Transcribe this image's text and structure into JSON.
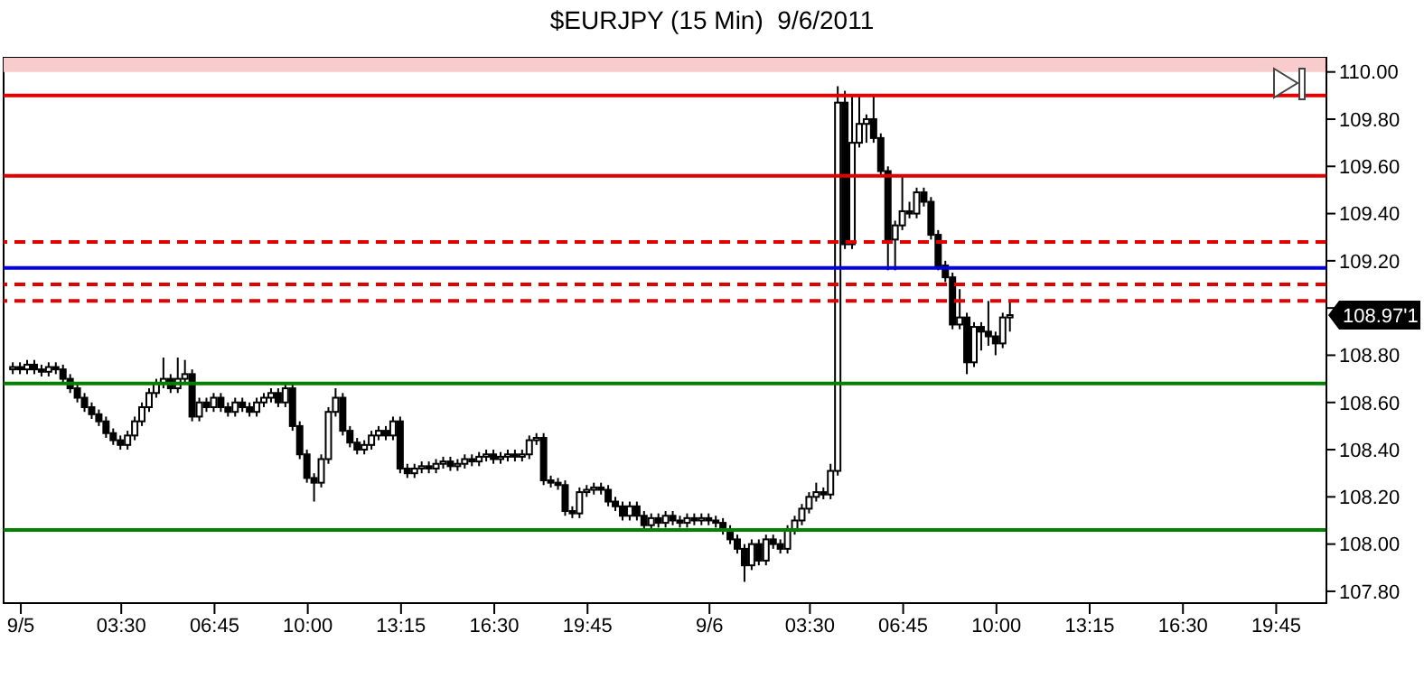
{
  "chart_data": {
    "type": "candlestick",
    "title": "$EURJPY (15 Min)  9/6/2011",
    "x": [
      "2011-09-04T23:45",
      "2011-09-05T00:00",
      "2011-09-05T00:15",
      "2011-09-05T00:30",
      "2011-09-05T00:45",
      "2011-09-05T01:00",
      "2011-09-05T01:15",
      "2011-09-05T01:30",
      "2011-09-05T01:45",
      "2011-09-05T02:00",
      "2011-09-05T02:15",
      "2011-09-05T02:30",
      "2011-09-05T02:45",
      "2011-09-05T03:00",
      "2011-09-05T03:15",
      "2011-09-05T03:30",
      "2011-09-05T03:45",
      "2011-09-05T04:00",
      "2011-09-05T04:15",
      "2011-09-05T04:30",
      "2011-09-05T04:45",
      "2011-09-05T05:00",
      "2011-09-05T05:15",
      "2011-09-05T05:30",
      "2011-09-05T05:45",
      "2011-09-05T06:00",
      "2011-09-05T06:15",
      "2011-09-05T06:30",
      "2011-09-05T06:45",
      "2011-09-05T07:00",
      "2011-09-05T07:15",
      "2011-09-05T07:30",
      "2011-09-05T07:45",
      "2011-09-05T08:00",
      "2011-09-05T08:15",
      "2011-09-05T08:30",
      "2011-09-05T08:45",
      "2011-09-05T09:00",
      "2011-09-05T09:15",
      "2011-09-05T09:30",
      "2011-09-05T09:45",
      "2011-09-05T10:00",
      "2011-09-05T10:15",
      "2011-09-05T10:30",
      "2011-09-05T10:45",
      "2011-09-05T11:00",
      "2011-09-05T11:15",
      "2011-09-05T11:30",
      "2011-09-05T11:45",
      "2011-09-05T12:00",
      "2011-09-05T12:15",
      "2011-09-05T12:30",
      "2011-09-05T12:45",
      "2011-09-05T13:00",
      "2011-09-05T13:15",
      "2011-09-05T13:30",
      "2011-09-05T13:45",
      "2011-09-05T14:00",
      "2011-09-05T14:15",
      "2011-09-05T14:30",
      "2011-09-05T14:45",
      "2011-09-05T15:00",
      "2011-09-05T15:15",
      "2011-09-05T15:30",
      "2011-09-05T15:45",
      "2011-09-05T16:00",
      "2011-09-05T16:15",
      "2011-09-05T16:30",
      "2011-09-05T16:45",
      "2011-09-05T17:00",
      "2011-09-05T17:15",
      "2011-09-05T17:30",
      "2011-09-05T17:45",
      "2011-09-05T18:00",
      "2011-09-05T18:15",
      "2011-09-05T18:30",
      "2011-09-05T18:45",
      "2011-09-05T19:00",
      "2011-09-05T19:15",
      "2011-09-05T19:30",
      "2011-09-05T19:45",
      "2011-09-05T20:00",
      "2011-09-05T20:15",
      "2011-09-05T20:30",
      "2011-09-05T20:45",
      "2011-09-05T21:00",
      "2011-09-05T21:15",
      "2011-09-05T21:30",
      "2011-09-05T21:45",
      "2011-09-05T22:00",
      "2011-09-05T22:15",
      "2011-09-05T22:30",
      "2011-09-05T22:45",
      "2011-09-05T23:00",
      "2011-09-05T23:15",
      "2011-09-05T23:30",
      "2011-09-05T23:45",
      "2011-09-06T00:00",
      "2011-09-06T00:15",
      "2011-09-06T00:30",
      "2011-09-06T00:45",
      "2011-09-06T01:00",
      "2011-09-06T01:15",
      "2011-09-06T01:30",
      "2011-09-06T01:45",
      "2011-09-06T02:00",
      "2011-09-06T02:15",
      "2011-09-06T02:30",
      "2011-09-06T02:45",
      "2011-09-06T03:00",
      "2011-09-06T03:15",
      "2011-09-06T03:30",
      "2011-09-06T03:45",
      "2011-09-06T04:00",
      "2011-09-06T04:15",
      "2011-09-06T04:30",
      "2011-09-06T04:45",
      "2011-09-06T05:00",
      "2011-09-06T05:15",
      "2011-09-06T05:30",
      "2011-09-06T05:45",
      "2011-09-06T06:00",
      "2011-09-06T06:15",
      "2011-09-06T06:30",
      "2011-09-06T06:45",
      "2011-09-06T07:00",
      "2011-09-06T07:15",
      "2011-09-06T07:30",
      "2011-09-06T07:45",
      "2011-09-06T08:00",
      "2011-09-06T08:15",
      "2011-09-06T08:30",
      "2011-09-06T08:45",
      "2011-09-06T09:00",
      "2011-09-06T09:15",
      "2011-09-06T09:30",
      "2011-09-06T09:45",
      "2011-09-06T10:00",
      "2011-09-06T10:15",
      "2011-09-06T10:30"
    ],
    "series": [
      {
        "color": "#000000",
        "ohlc": [
          [
            108.74,
            108.77,
            108.72,
            108.75
          ],
          [
            108.75,
            108.77,
            108.72,
            108.74
          ],
          [
            108.74,
            108.78,
            108.72,
            108.76
          ],
          [
            108.76,
            108.78,
            108.72,
            108.74
          ],
          [
            108.74,
            108.76,
            108.71,
            108.73
          ],
          [
            108.73,
            108.77,
            108.71,
            108.75
          ],
          [
            108.75,
            108.77,
            108.72,
            108.74
          ],
          [
            108.74,
            108.76,
            108.68,
            108.7
          ],
          [
            108.7,
            108.72,
            108.64,
            108.66
          ],
          [
            108.66,
            108.68,
            108.6,
            108.62
          ],
          [
            108.62,
            108.64,
            108.56,
            108.58
          ],
          [
            108.58,
            108.6,
            108.53,
            108.55
          ],
          [
            108.55,
            108.57,
            108.5,
            108.52
          ],
          [
            108.52,
            108.54,
            108.45,
            108.47
          ],
          [
            108.47,
            108.49,
            108.42,
            108.44
          ],
          [
            108.44,
            108.46,
            108.4,
            108.42
          ],
          [
            108.42,
            108.48,
            108.4,
            108.46
          ],
          [
            108.46,
            108.54,
            108.44,
            108.52
          ],
          [
            108.52,
            108.6,
            108.5,
            108.58
          ],
          [
            108.58,
            108.66,
            108.56,
            108.64
          ],
          [
            108.64,
            108.7,
            108.62,
            108.68
          ],
          [
            108.68,
            108.79,
            108.66,
            108.7
          ],
          [
            108.7,
            108.72,
            108.64,
            108.66
          ],
          [
            108.66,
            108.79,
            108.64,
            108.7
          ],
          [
            108.7,
            108.78,
            108.68,
            108.72
          ],
          [
            108.72,
            108.74,
            108.52,
            108.54
          ],
          [
            108.54,
            108.62,
            108.52,
            108.6
          ],
          [
            108.6,
            108.62,
            108.56,
            108.58
          ],
          [
            108.58,
            108.64,
            108.56,
            108.62
          ],
          [
            108.62,
            108.64,
            108.56,
            108.58
          ],
          [
            108.58,
            108.6,
            108.54,
            108.56
          ],
          [
            108.56,
            108.62,
            108.54,
            108.6
          ],
          [
            108.6,
            108.62,
            108.56,
            108.58
          ],
          [
            108.58,
            108.6,
            108.54,
            108.56
          ],
          [
            108.56,
            108.62,
            108.54,
            108.6
          ],
          [
            108.6,
            108.64,
            108.58,
            108.62
          ],
          [
            108.62,
            108.66,
            108.6,
            108.64
          ],
          [
            108.64,
            108.66,
            108.58,
            108.6
          ],
          [
            108.6,
            108.68,
            108.58,
            108.66
          ],
          [
            108.66,
            108.68,
            108.48,
            108.5
          ],
          [
            108.5,
            108.52,
            108.36,
            108.38
          ],
          [
            108.38,
            108.4,
            108.26,
            108.28
          ],
          [
            108.28,
            108.3,
            108.18,
            108.26
          ],
          [
            108.26,
            108.38,
            108.24,
            108.36
          ],
          [
            108.36,
            108.58,
            108.34,
            108.56
          ],
          [
            108.56,
            108.66,
            108.54,
            108.62
          ],
          [
            108.62,
            108.64,
            108.46,
            108.48
          ],
          [
            108.48,
            108.5,
            108.41,
            108.43
          ],
          [
            108.43,
            108.45,
            108.38,
            108.4
          ],
          [
            108.4,
            108.44,
            108.38,
            108.42
          ],
          [
            108.42,
            108.48,
            108.4,
            108.46
          ],
          [
            108.46,
            108.5,
            108.44,
            108.48
          ],
          [
            108.48,
            108.5,
            108.44,
            108.46
          ],
          [
            108.46,
            108.54,
            108.44,
            108.52
          ],
          [
            108.52,
            108.54,
            108.3,
            108.32
          ],
          [
            108.32,
            108.34,
            108.28,
            108.3
          ],
          [
            108.3,
            108.34,
            108.28,
            108.32
          ],
          [
            108.32,
            108.35,
            108.3,
            108.33
          ],
          [
            108.33,
            108.35,
            108.3,
            108.32
          ],
          [
            108.32,
            108.36,
            108.3,
            108.34
          ],
          [
            108.34,
            108.37,
            108.32,
            108.35
          ],
          [
            108.35,
            108.37,
            108.31,
            108.33
          ],
          [
            108.33,
            108.36,
            108.31,
            108.34
          ],
          [
            108.34,
            108.38,
            108.32,
            108.36
          ],
          [
            108.36,
            108.38,
            108.33,
            108.35
          ],
          [
            108.35,
            108.39,
            108.33,
            108.37
          ],
          [
            108.37,
            108.4,
            108.35,
            108.38
          ],
          [
            108.38,
            108.4,
            108.34,
            108.36
          ],
          [
            108.36,
            108.39,
            108.34,
            108.37
          ],
          [
            108.37,
            108.4,
            108.35,
            108.38
          ],
          [
            108.38,
            108.4,
            108.35,
            108.37
          ],
          [
            108.37,
            108.4,
            108.35,
            108.38
          ],
          [
            108.38,
            108.46,
            108.36,
            108.44
          ],
          [
            108.44,
            108.47,
            108.42,
            108.45
          ],
          [
            108.45,
            108.47,
            108.25,
            108.27
          ],
          [
            108.27,
            108.29,
            108.24,
            108.26
          ],
          [
            108.26,
            108.28,
            108.23,
            108.25
          ],
          [
            108.25,
            108.27,
            108.12,
            108.14
          ],
          [
            108.14,
            108.16,
            108.11,
            108.13
          ],
          [
            108.13,
            108.24,
            108.11,
            108.22
          ],
          [
            108.22,
            108.25,
            108.2,
            108.23
          ],
          [
            108.23,
            108.26,
            108.21,
            108.24
          ],
          [
            108.24,
            108.26,
            108.21,
            108.23
          ],
          [
            108.23,
            108.25,
            108.16,
            108.18
          ],
          [
            108.18,
            108.2,
            108.14,
            108.16
          ],
          [
            108.16,
            108.18,
            108.1,
            108.12
          ],
          [
            108.12,
            108.18,
            108.1,
            108.16
          ],
          [
            108.16,
            108.18,
            108.1,
            108.12
          ],
          [
            108.12,
            108.14,
            108.06,
            108.08
          ],
          [
            108.08,
            108.13,
            108.06,
            108.11
          ],
          [
            108.11,
            108.13,
            108.07,
            108.09
          ],
          [
            108.09,
            108.14,
            108.07,
            108.12
          ],
          [
            108.12,
            108.14,
            108.08,
            108.1
          ],
          [
            108.1,
            108.12,
            108.07,
            108.09
          ],
          [
            108.09,
            108.13,
            108.07,
            108.11
          ],
          [
            108.11,
            108.13,
            108.08,
            108.1
          ],
          [
            108.1,
            108.13,
            108.08,
            108.11
          ],
          [
            108.11,
            108.13,
            108.08,
            108.1
          ],
          [
            108.1,
            108.12,
            108.07,
            108.09
          ],
          [
            108.09,
            108.11,
            108.04,
            108.06
          ],
          [
            108.06,
            108.08,
            108.0,
            108.02
          ],
          [
            108.02,
            108.04,
            107.96,
            107.98
          ],
          [
            107.98,
            108.0,
            107.84,
            107.91
          ],
          [
            107.91,
            108.02,
            107.89,
            108.0
          ],
          [
            108.0,
            108.02,
            107.91,
            107.93
          ],
          [
            107.93,
            108.04,
            107.91,
            108.02
          ],
          [
            108.02,
            108.04,
            107.98,
            108.0
          ],
          [
            108.0,
            108.02,
            107.96,
            107.98
          ],
          [
            107.98,
            108.08,
            107.96,
            108.06
          ],
          [
            108.06,
            108.12,
            108.04,
            108.1
          ],
          [
            108.1,
            108.17,
            108.08,
            108.15
          ],
          [
            108.15,
            108.22,
            108.13,
            108.2
          ],
          [
            108.2,
            108.26,
            108.18,
            108.22
          ],
          [
            108.22,
            108.24,
            108.19,
            108.21
          ],
          [
            108.21,
            108.34,
            108.19,
            108.31
          ],
          [
            108.31,
            109.94,
            108.29,
            109.87
          ],
          [
            109.87,
            109.92,
            109.25,
            109.27
          ],
          [
            109.27,
            109.9,
            109.25,
            109.7
          ],
          [
            109.7,
            109.9,
            109.68,
            109.78
          ],
          [
            109.78,
            109.82,
            109.7,
            109.8
          ],
          [
            109.8,
            109.9,
            109.7,
            109.72
          ],
          [
            109.72,
            109.74,
            109.56,
            109.58
          ],
          [
            109.58,
            109.6,
            109.16,
            109.29
          ],
          [
            109.29,
            109.37,
            109.16,
            109.35
          ],
          [
            109.35,
            109.56,
            109.33,
            109.41
          ],
          [
            109.41,
            109.45,
            109.38,
            109.4
          ],
          [
            109.4,
            109.51,
            109.38,
            109.49
          ],
          [
            109.49,
            109.51,
            109.43,
            109.45
          ],
          [
            109.45,
            109.47,
            109.29,
            109.31
          ],
          [
            109.31,
            109.33,
            109.16,
            109.18
          ],
          [
            109.18,
            109.2,
            109.11,
            109.13
          ],
          [
            109.13,
            109.15,
            108.91,
            108.93
          ],
          [
            108.93,
            109.08,
            108.91,
            108.96
          ],
          [
            108.96,
            108.98,
            108.72,
            108.77
          ],
          [
            108.77,
            108.94,
            108.75,
            108.92
          ],
          [
            108.92,
            108.94,
            108.82,
            108.9
          ],
          [
            108.9,
            109.03,
            108.84,
            108.88
          ],
          [
            108.88,
            108.9,
            108.8,
            108.85
          ],
          [
            108.85,
            108.98,
            108.83,
            108.96
          ],
          [
            108.96,
            109.03,
            108.9,
            108.97
          ]
        ]
      }
    ],
    "xlim": [
      "2011-09-04T23:24",
      "2011-09-06T21:30"
    ],
    "xticks": [
      {
        "value": "2011-09-05T00:00",
        "label": "9/5"
      },
      {
        "value": "2011-09-05T03:30",
        "label": "03:30"
      },
      {
        "value": "2011-09-05T06:45",
        "label": "06:45"
      },
      {
        "value": "2011-09-05T10:00",
        "label": "10:00"
      },
      {
        "value": "2011-09-05T13:15",
        "label": "13:15"
      },
      {
        "value": "2011-09-05T16:30",
        "label": "16:30"
      },
      {
        "value": "2011-09-05T19:45",
        "label": "19:45"
      },
      {
        "value": "2011-09-06T00:00",
        "label": "9/6"
      },
      {
        "value": "2011-09-06T03:30",
        "label": "03:30"
      },
      {
        "value": "2011-09-06T06:45",
        "label": "06:45"
      },
      {
        "value": "2011-09-06T10:00",
        "label": "10:00"
      },
      {
        "value": "2011-09-06T13:15",
        "label": "13:15"
      },
      {
        "value": "2011-09-06T16:30",
        "label": "16:30"
      },
      {
        "value": "2011-09-06T19:45",
        "label": "19:45"
      }
    ],
    "ylim": [
      107.75,
      110.06
    ],
    "yticks": [
      {
        "value": 107.8,
        "label": "107.80"
      },
      {
        "value": 108,
        "label": "108.00"
      },
      {
        "value": 108.2,
        "label": "108.20"
      },
      {
        "value": 108.4,
        "label": "108.40"
      },
      {
        "value": 108.6,
        "label": "108.60"
      },
      {
        "value": 108.8,
        "label": "108.80"
      },
      {
        "value": 109,
        "label": null
      },
      {
        "value": 109.2,
        "label": "109.20"
      },
      {
        "value": 109.4,
        "label": "109.40"
      },
      {
        "value": 109.6,
        "label": "109.60"
      },
      {
        "value": 109.8,
        "label": "109.80"
      },
      {
        "value": 110,
        "label": "110.00"
      }
    ],
    "grid": false,
    "bands": [
      {
        "axis": "y",
        "from": 110.0,
        "to": 110.06,
        "color": "#f8cccc"
      }
    ],
    "ref_lines": [
      {
        "axis": "y",
        "value": 109.9,
        "color": "#e00000",
        "line_style": "solid"
      },
      {
        "axis": "y",
        "value": 109.56,
        "color": "#e00000",
        "line_style": "solid"
      },
      {
        "axis": "y",
        "value": 109.28,
        "color": "#e00000",
        "line_style": "dashed"
      },
      {
        "axis": "y",
        "value": 109.17,
        "color": "#0000e0",
        "line_style": "solid"
      },
      {
        "axis": "y",
        "value": 109.1,
        "color": "#e00000",
        "line_style": "dashed"
      },
      {
        "axis": "y",
        "value": 109.03,
        "color": "#e00000",
        "line_style": "dashed"
      },
      {
        "axis": "y",
        "value": 108.68,
        "color": "#008000",
        "line_style": "solid"
      },
      {
        "axis": "y",
        "value": 108.06,
        "color": "#008000",
        "line_style": "solid"
      }
    ],
    "annotations": [
      "108.97'1"
    ]
  }
}
